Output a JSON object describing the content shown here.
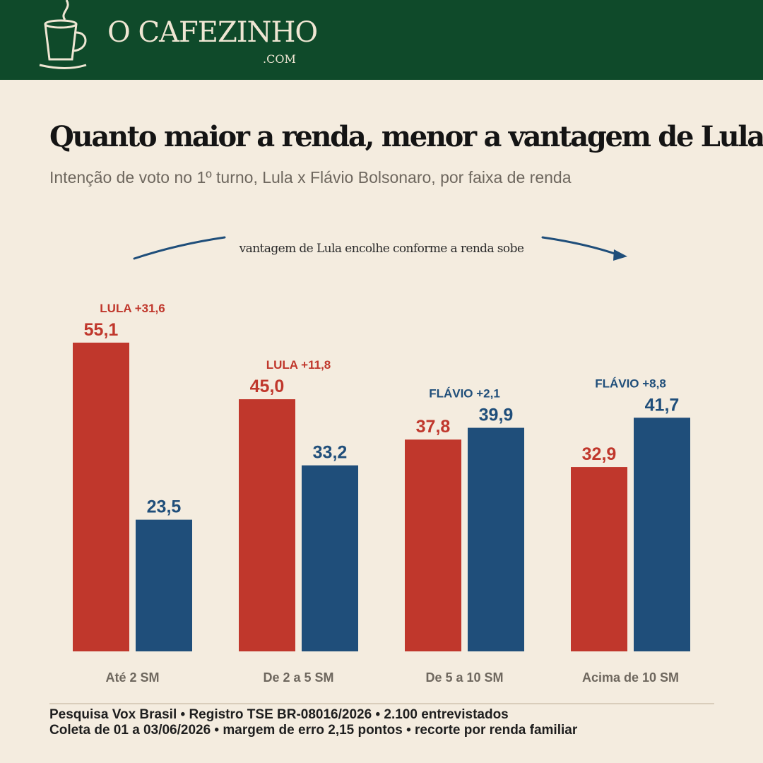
{
  "header": {
    "brand": "O CAFEZINHO",
    "brand_suffix": ".COM",
    "logo_icon": "coffee-cup-icon"
  },
  "title": "Quanto maior a renda, menor a vantagem de Lula",
  "subtitle": "Intenção de voto no 1º turno, Lula x Flávio Bolsonaro, por faixa de renda",
  "annotation": "vantagem de Lula encolhe conforme a renda sobe",
  "colors": {
    "lula": "#c0372c",
    "flavio": "#1f4e7a",
    "header_bg": "#0f4a2a",
    "page_bg": "#f4ecdf"
  },
  "chart_data": {
    "type": "bar",
    "categories": [
      "Até 2 SM",
      "De 2 a 5 SM",
      "De 5 a 10 SM",
      "Acima de 10 SM"
    ],
    "series": [
      {
        "values": [
          55.1,
          45.0,
          37.8,
          32.9
        ],
        "labels": [
          "55,1",
          "45,0",
          "37,8",
          "32,9"
        ]
      },
      {
        "values": [
          23.5,
          33.2,
          39.9,
          41.7
        ],
        "labels": [
          "23,5",
          "33,2",
          "39,9",
          "41,7"
        ]
      }
    ],
    "leads": [
      {
        "label": "LULA +31,6",
        "leader": "lula"
      },
      {
        "label": "LULA +11,8",
        "leader": "lula"
      },
      {
        "label": "FLÁVIO +2,1",
        "leader": "flavio"
      },
      {
        "label": "FLÁVIO +8,8",
        "leader": "flavio"
      }
    ],
    "ylim": [
      0,
      60
    ]
  },
  "footer": {
    "line1": "Pesquisa Vox Brasil  •  Registro TSE BR-08016/2026  •  2.100 entrevistados",
    "line2": "Coleta de 01 a 03/06/2026  •  margem de erro 2,15 pontos  •  recorte por renda familiar"
  }
}
